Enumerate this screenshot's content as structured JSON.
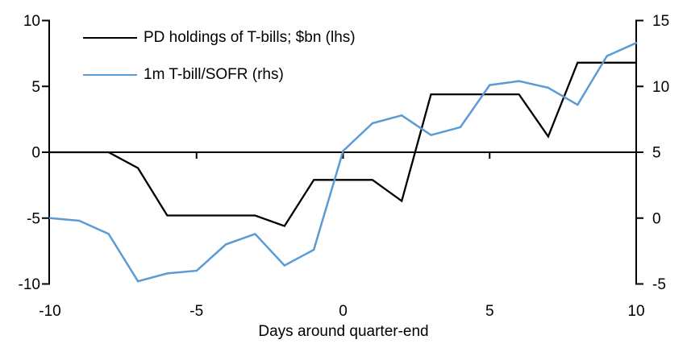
{
  "chart_data": {
    "type": "line",
    "title": "",
    "xlabel": "Days around quarter-end",
    "grid": false,
    "legend_position": "top-left",
    "x": [
      -10,
      -9,
      -8,
      -7,
      -6,
      -5,
      -4,
      -3,
      -2,
      -1,
      0,
      1,
      2,
      3,
      4,
      5,
      6,
      7,
      8,
      9,
      10
    ],
    "series": [
      {
        "name": "PD holdings of T-bills; $bn (lhs)",
        "axis": "left",
        "color": "#000000",
        "values": [
          0,
          0,
          0,
          -1.2,
          -4.8,
          -4.8,
          -4.8,
          -4.8,
          -5.6,
          -2.1,
          -2.1,
          -2.1,
          -3.7,
          4.4,
          4.4,
          4.4,
          4.4,
          1.2,
          6.8,
          6.8,
          6.8
        ]
      },
      {
        "name": "1m T-bill/SOFR (rhs)",
        "axis": "right",
        "color": "#5B9BD5",
        "values": [
          0,
          -0.2,
          -1.2,
          -4.8,
          -4.2,
          -4.0,
          -2.0,
          -1.2,
          -3.6,
          -2.4,
          5.1,
          7.2,
          7.8,
          6.3,
          6.9,
          10.1,
          10.4,
          9.9,
          8.6,
          12.3,
          13.3
        ]
      }
    ],
    "left_axis": {
      "min": -10,
      "max": 10,
      "ticks": [
        10,
        5,
        0,
        -5,
        -10
      ]
    },
    "right_axis": {
      "min": -5,
      "max": 15,
      "ticks": [
        15,
        10,
        5,
        0,
        -5
      ]
    },
    "x_axis": {
      "min": -10,
      "max": 10,
      "ticks": [
        -10,
        -5,
        0,
        5,
        10
      ],
      "label": "Days around quarter-end"
    }
  }
}
